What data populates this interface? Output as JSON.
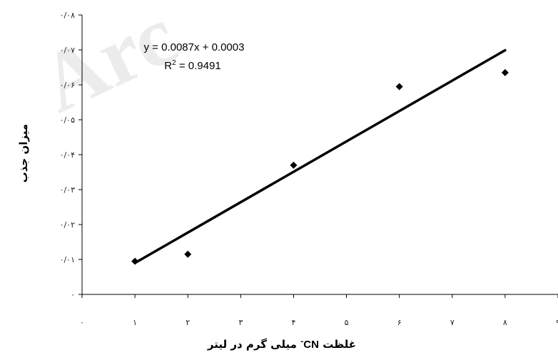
{
  "watermark": "Arc",
  "chart_data": {
    "type": "scatter",
    "title": "",
    "xlabel": "غلظت CN- میلی گرم در لیتر",
    "xlabel_parts": {
      "prefix": "غلظت",
      "ion": "CN",
      "charge": "-",
      "suffix": "میلی گرم در لیتر"
    },
    "ylabel": "میزان جذب",
    "xlim": [
      0,
      9
    ],
    "ylim": [
      0,
      0.08
    ],
    "x_ticks": [
      0,
      1,
      2,
      3,
      4,
      5,
      6,
      7,
      8,
      9
    ],
    "x_tick_labels": [
      "۰",
      "۱",
      "۲",
      "۳",
      "۴",
      "۵",
      "۶",
      "۷",
      "۸",
      "۹"
    ],
    "y_ticks": [
      0,
      0.01,
      0.02,
      0.03,
      0.04,
      0.05,
      0.06,
      0.07,
      0.08
    ],
    "y_tick_labels": [
      "۰",
      "۰/۰۱",
      "۰/۰۲",
      "۰/۰۳",
      "۰/۰۴",
      "۰/۰۵",
      "۰/۰۶",
      "۰/۰۷",
      "۰/۰۸"
    ],
    "grid": false,
    "legend": "none",
    "series": [
      {
        "marker": "diamond",
        "color": "#000000",
        "points": [
          {
            "x": 1,
            "y": 0.0095
          },
          {
            "x": 2,
            "y": 0.0115
          },
          {
            "x": 4,
            "y": 0.037
          },
          {
            "x": 6,
            "y": 0.0595
          },
          {
            "x": 8,
            "y": 0.0635
          }
        ]
      }
    ],
    "trendline": {
      "slope": 0.0087,
      "intercept": 0.0003,
      "x_range": [
        1,
        8
      ],
      "color": "#000000",
      "equation_label": "y = 0.0087x + 0.0003",
      "r2_label_prefix": "R",
      "r2_label_sup": "2",
      "r2_label_value": " = 0.9491"
    }
  }
}
